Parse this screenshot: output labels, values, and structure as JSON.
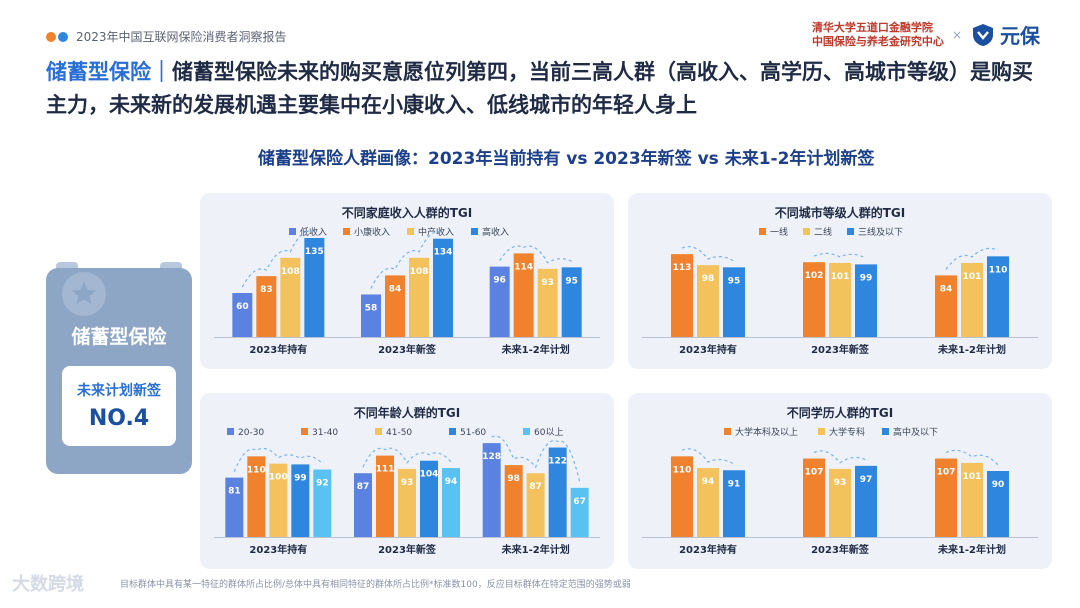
{
  "header": {
    "report_title": "2023年中国互联网保险消费者洞察报告",
    "org_line1": "清华大学五道口金融学院",
    "org_line2": "中国保险与养老金研究中心",
    "times": "×",
    "brand": "元保"
  },
  "headline": {
    "key": "储蓄型保险",
    "sep": "｜",
    "text": "储蓄型保险未来的购买意愿位列第四，当前三高人群（高收入、高学历、高城市等级）是购买主力，未来新的发展机遇主要集中在小康收入、低线城市的年轻人身上"
  },
  "subtitle": "储蓄型保险人群画像：2023年当前持有 vs 2023年新签 vs 未来1-2年计划新签",
  "side_card": {
    "title": "储蓄型保险",
    "plan_label": "未来计划新签",
    "rank": "NO.4"
  },
  "colors": {
    "blue": "#5b82e0",
    "orange": "#f0822e",
    "yellow": "#f4c25c",
    "deep_blue": "#2f86de",
    "sky": "#59c2f2"
  },
  "footnote": "目标群体中具有某一特征的群体所占比例/总体中具有相同特征的群体所占比例*标准数100，反应目标群体在特定范围的强势或弱",
  "watermark": "大数跨境",
  "chart_data": [
    {
      "type": "bar",
      "title": "不同家庭收入人群的TGI",
      "categories": [
        "2023年持有",
        "2023年新签",
        "未来1-2年计划"
      ],
      "series": [
        {
          "name": "低收入",
          "values": [
            60,
            58,
            96
          ],
          "color": "#5b82e0"
        },
        {
          "name": "小康收入",
          "values": [
            83,
            84,
            114
          ],
          "color": "#f0822e"
        },
        {
          "name": "中产收入",
          "values": [
            108,
            108,
            93
          ],
          "color": "#f4c25c"
        },
        {
          "name": "高收入",
          "values": [
            135,
            134,
            95
          ],
          "color": "#2f86de"
        }
      ],
      "legend": "top",
      "ylim": [
        0,
        150
      ]
    },
    {
      "type": "bar",
      "title": "不同城市等级人群的TGI",
      "categories": [
        "2023年持有",
        "2023年新签",
        "未来1-2年计划"
      ],
      "series": [
        {
          "name": "一线",
          "values": [
            113,
            102,
            84
          ],
          "color": "#f0822e"
        },
        {
          "name": "二线",
          "values": [
            98,
            101,
            101
          ],
          "color": "#f4c25c"
        },
        {
          "name": "三线及以下",
          "values": [
            95,
            99,
            110
          ],
          "color": "#2f86de"
        }
      ],
      "legend": "top",
      "ylim": [
        0,
        150
      ]
    },
    {
      "type": "bar",
      "title": "不同年龄人群的TGI",
      "categories": [
        "2023年持有",
        "2023年新签",
        "未来1-2年计划"
      ],
      "series": [
        {
          "name": "20-30",
          "values": [
            81,
            87,
            128
          ],
          "color": "#5b82e0"
        },
        {
          "name": "31-40",
          "values": [
            110,
            111,
            98
          ],
          "color": "#f0822e"
        },
        {
          "name": "41-50",
          "values": [
            100,
            93,
            87
          ],
          "color": "#f4c25c"
        },
        {
          "name": "51-60",
          "values": [
            99,
            104,
            122
          ],
          "color": "#2f86de"
        },
        {
          "name": "60以上",
          "values": [
            92,
            94,
            67
          ],
          "color": "#59c2f2"
        }
      ],
      "legend": "top",
      "ylim": [
        0,
        150
      ]
    },
    {
      "type": "bar",
      "title": "不同学历人群的TGI",
      "categories": [
        "2023年持有",
        "2023年新签",
        "未来1-2年计划"
      ],
      "series": [
        {
          "name": "大学本科及以上",
          "values": [
            110,
            107,
            107
          ],
          "color": "#f0822e"
        },
        {
          "name": "大学专科",
          "values": [
            94,
            93,
            101
          ],
          "color": "#f4c25c"
        },
        {
          "name": "高中及以下",
          "values": [
            91,
            97,
            90
          ],
          "color": "#2f86de"
        }
      ],
      "legend": "top",
      "ylim": [
        0,
        150
      ]
    }
  ]
}
